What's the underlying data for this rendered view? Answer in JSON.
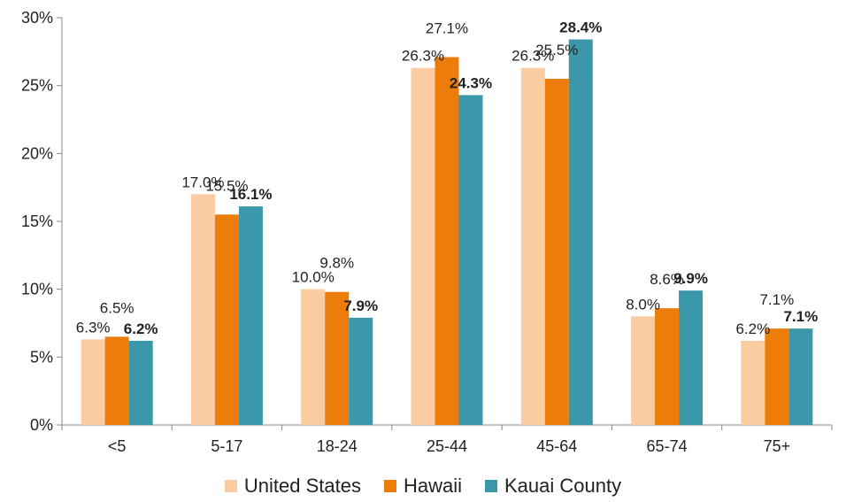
{
  "chart_data": {
    "type": "bar",
    "categories": [
      "<5",
      "5-17",
      "18-24",
      "25-44",
      "45-64",
      "65-74",
      "75+"
    ],
    "series": [
      {
        "name": "United States",
        "color": "#FBCBA2",
        "values": [
          6.3,
          17.0,
          10.0,
          26.3,
          26.3,
          8.0,
          6.2
        ],
        "labels": [
          "6.3%",
          "17.0%",
          "10.0%",
          "26.3%",
          "26.3%",
          "8.0%",
          "6.2%"
        ],
        "label_bold": false
      },
      {
        "name": "Hawaii",
        "color": "#EC7D0A",
        "values": [
          6.5,
          15.5,
          9.8,
          27.1,
          25.5,
          8.6,
          7.1
        ],
        "labels": [
          "6.5%",
          "15.5%",
          "9.8%",
          "27.1%",
          "25.5%",
          "8.6%",
          "7.1%"
        ],
        "label_bold": false
      },
      {
        "name": "Kauai County",
        "color": "#3A98AA",
        "values": [
          6.2,
          16.1,
          7.9,
          24.3,
          28.4,
          9.9,
          7.1
        ],
        "labels": [
          "6.2%",
          "16.1%",
          "7.9%",
          "24.3%",
          "28.4%",
          "9.9%",
          "7.1%"
        ],
        "label_bold": true
      }
    ],
    "ylim": [
      0,
      30
    ],
    "yticks": [
      0,
      5,
      10,
      15,
      20,
      25,
      30
    ],
    "ytick_labels": [
      "0%",
      "5%",
      "10%",
      "15%",
      "20%",
      "25%",
      "30%"
    ],
    "title": "",
    "xlabel": "",
    "ylabel": "",
    "grid": false,
    "legend_position": "bottom"
  }
}
